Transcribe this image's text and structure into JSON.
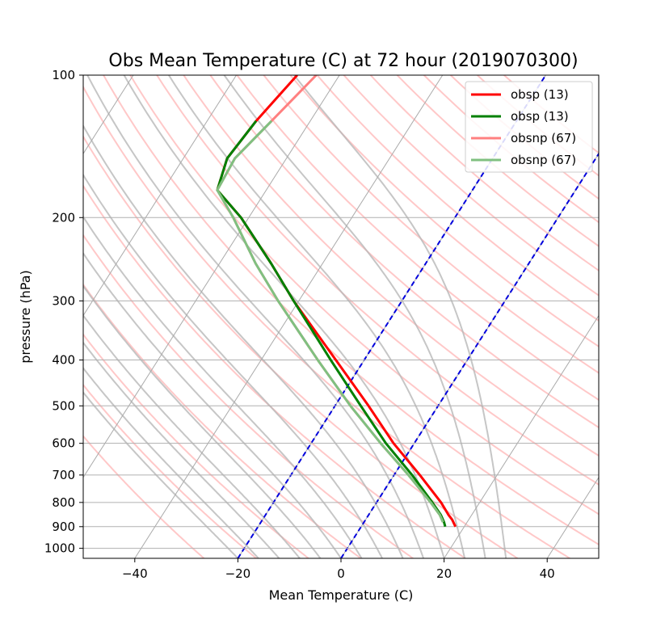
{
  "chart_data": {
    "type": "line",
    "title": "Obs Mean Temperature (C) at 72 hour (2019070300)",
    "xlabel": "Mean Temperature (C)",
    "ylabel": "pressure (hPa)",
    "xlim": [
      -50,
      50
    ],
    "ylim": [
      1050,
      100
    ],
    "y_scale": "log",
    "skew_t": true,
    "x_ticks": [
      -40,
      -20,
      0,
      20,
      40
    ],
    "x_tick_labels": [
      "−40",
      "−20",
      "0",
      "20",
      "40"
    ],
    "y_ticks": [
      100,
      200,
      300,
      400,
      500,
      600,
      700,
      800,
      900,
      1000
    ],
    "y_tick_labels": [
      "100",
      "200",
      "300",
      "400",
      "500",
      "600",
      "700",
      "800",
      "900",
      "1000"
    ],
    "grid": true,
    "legend_position": "top-right",
    "series": [
      {
        "name": "obsp (13)",
        "color": "#ff0000",
        "style": "solid",
        "points": [
          [
            100,
            -68.2
          ],
          [
            125,
            -70.5
          ],
          [
            150,
            -71.5
          ],
          [
            175,
            -69.5
          ],
          [
            200,
            -61.5
          ],
          [
            250,
            -50
          ],
          [
            300,
            -41
          ],
          [
            400,
            -25.5
          ],
          [
            500,
            -13.5
          ],
          [
            600,
            -4
          ],
          [
            700,
            5
          ],
          [
            800,
            12.5
          ],
          [
            850,
            15.5
          ],
          [
            870,
            16.8
          ],
          [
            900,
            18.3
          ]
        ]
      },
      {
        "name": "obsp (13)",
        "color": "#008000",
        "style": "solid",
        "points": [
          [
            125,
            -70.5
          ],
          [
            150,
            -71.5
          ],
          [
            175,
            -69.5
          ],
          [
            200,
            -61.5
          ],
          [
            250,
            -50
          ],
          [
            300,
            -41
          ],
          [
            400,
            -26.5
          ],
          [
            500,
            -15
          ],
          [
            600,
            -5.5
          ],
          [
            700,
            3.5
          ],
          [
            800,
            10.8
          ],
          [
            850,
            14
          ],
          [
            880,
            15.5
          ],
          [
            900,
            16.3
          ]
        ]
      },
      {
        "name": "obsnp (67)",
        "color": "#ff8080",
        "style": "solid",
        "points": [
          [
            100,
            -64.5
          ],
          [
            125,
            -67.5
          ],
          [
            150,
            -70
          ],
          [
            175,
            -69.5
          ],
          [
            200,
            -63
          ],
          [
            250,
            -53
          ],
          [
            300,
            -44
          ],
          [
            400,
            -29
          ],
          [
            500,
            -17
          ],
          [
            600,
            -6.5
          ],
          [
            700,
            2.8
          ],
          [
            800,
            10.5
          ],
          [
            850,
            13.8
          ],
          [
            880,
            15.3
          ]
        ]
      },
      {
        "name": "obsnp (67)",
        "color": "#80c080",
        "style": "solid",
        "points": [
          [
            125,
            -67.5
          ],
          [
            150,
            -70
          ],
          [
            175,
            -69.5
          ],
          [
            200,
            -63
          ],
          [
            250,
            -53
          ],
          [
            300,
            -44
          ],
          [
            400,
            -29
          ],
          [
            500,
            -17
          ],
          [
            600,
            -6.5
          ],
          [
            700,
            2.8
          ],
          [
            800,
            10.5
          ],
          [
            850,
            13.8
          ],
          [
            880,
            15.3
          ]
        ]
      }
    ],
    "reference_lines": {
      "isotherms_color": "#aaaaaa",
      "dry_adiabats_color": "#ffb0b0",
      "moist_adiabats_color": "#b8b8b8",
      "mixing_ratio_color": "#0000dd"
    }
  }
}
